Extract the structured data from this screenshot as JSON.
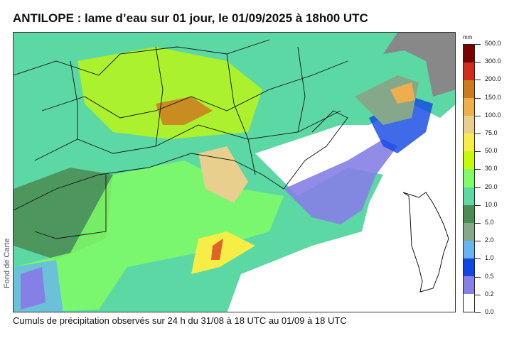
{
  "title": "ANTILOPE : lame d’eau sur 01 jour, le 01/09/2025 à 18h00 UTC",
  "caption": "Cumuls de précipitation observés sur 24 h du 31/08 à 18 UTC au 01/09 à 18 UTC",
  "map_credit": "Fond de Carte",
  "legend": {
    "unit": "mm",
    "ticks": [
      "500.0",
      "300.0",
      "200.0",
      "150.0",
      "100.0",
      "75.0",
      "50.0",
      "30.0",
      "20.0",
      "10.0",
      "5.0",
      "2.0",
      "1.0",
      "0.5",
      "0.2",
      "0.0"
    ],
    "colors": [
      "#7a0000",
      "#d42a1c",
      "#cc7a1e",
      "#efae4e",
      "#e8cf8e",
      "#f6ee46",
      "#c6fa06",
      "#7ffc66",
      "#5cd8a4",
      "#4a8c52",
      "#86a88a",
      "#66b4f2",
      "#0f46e4",
      "#8680e6",
      "#ffffff"
    ]
  }
}
